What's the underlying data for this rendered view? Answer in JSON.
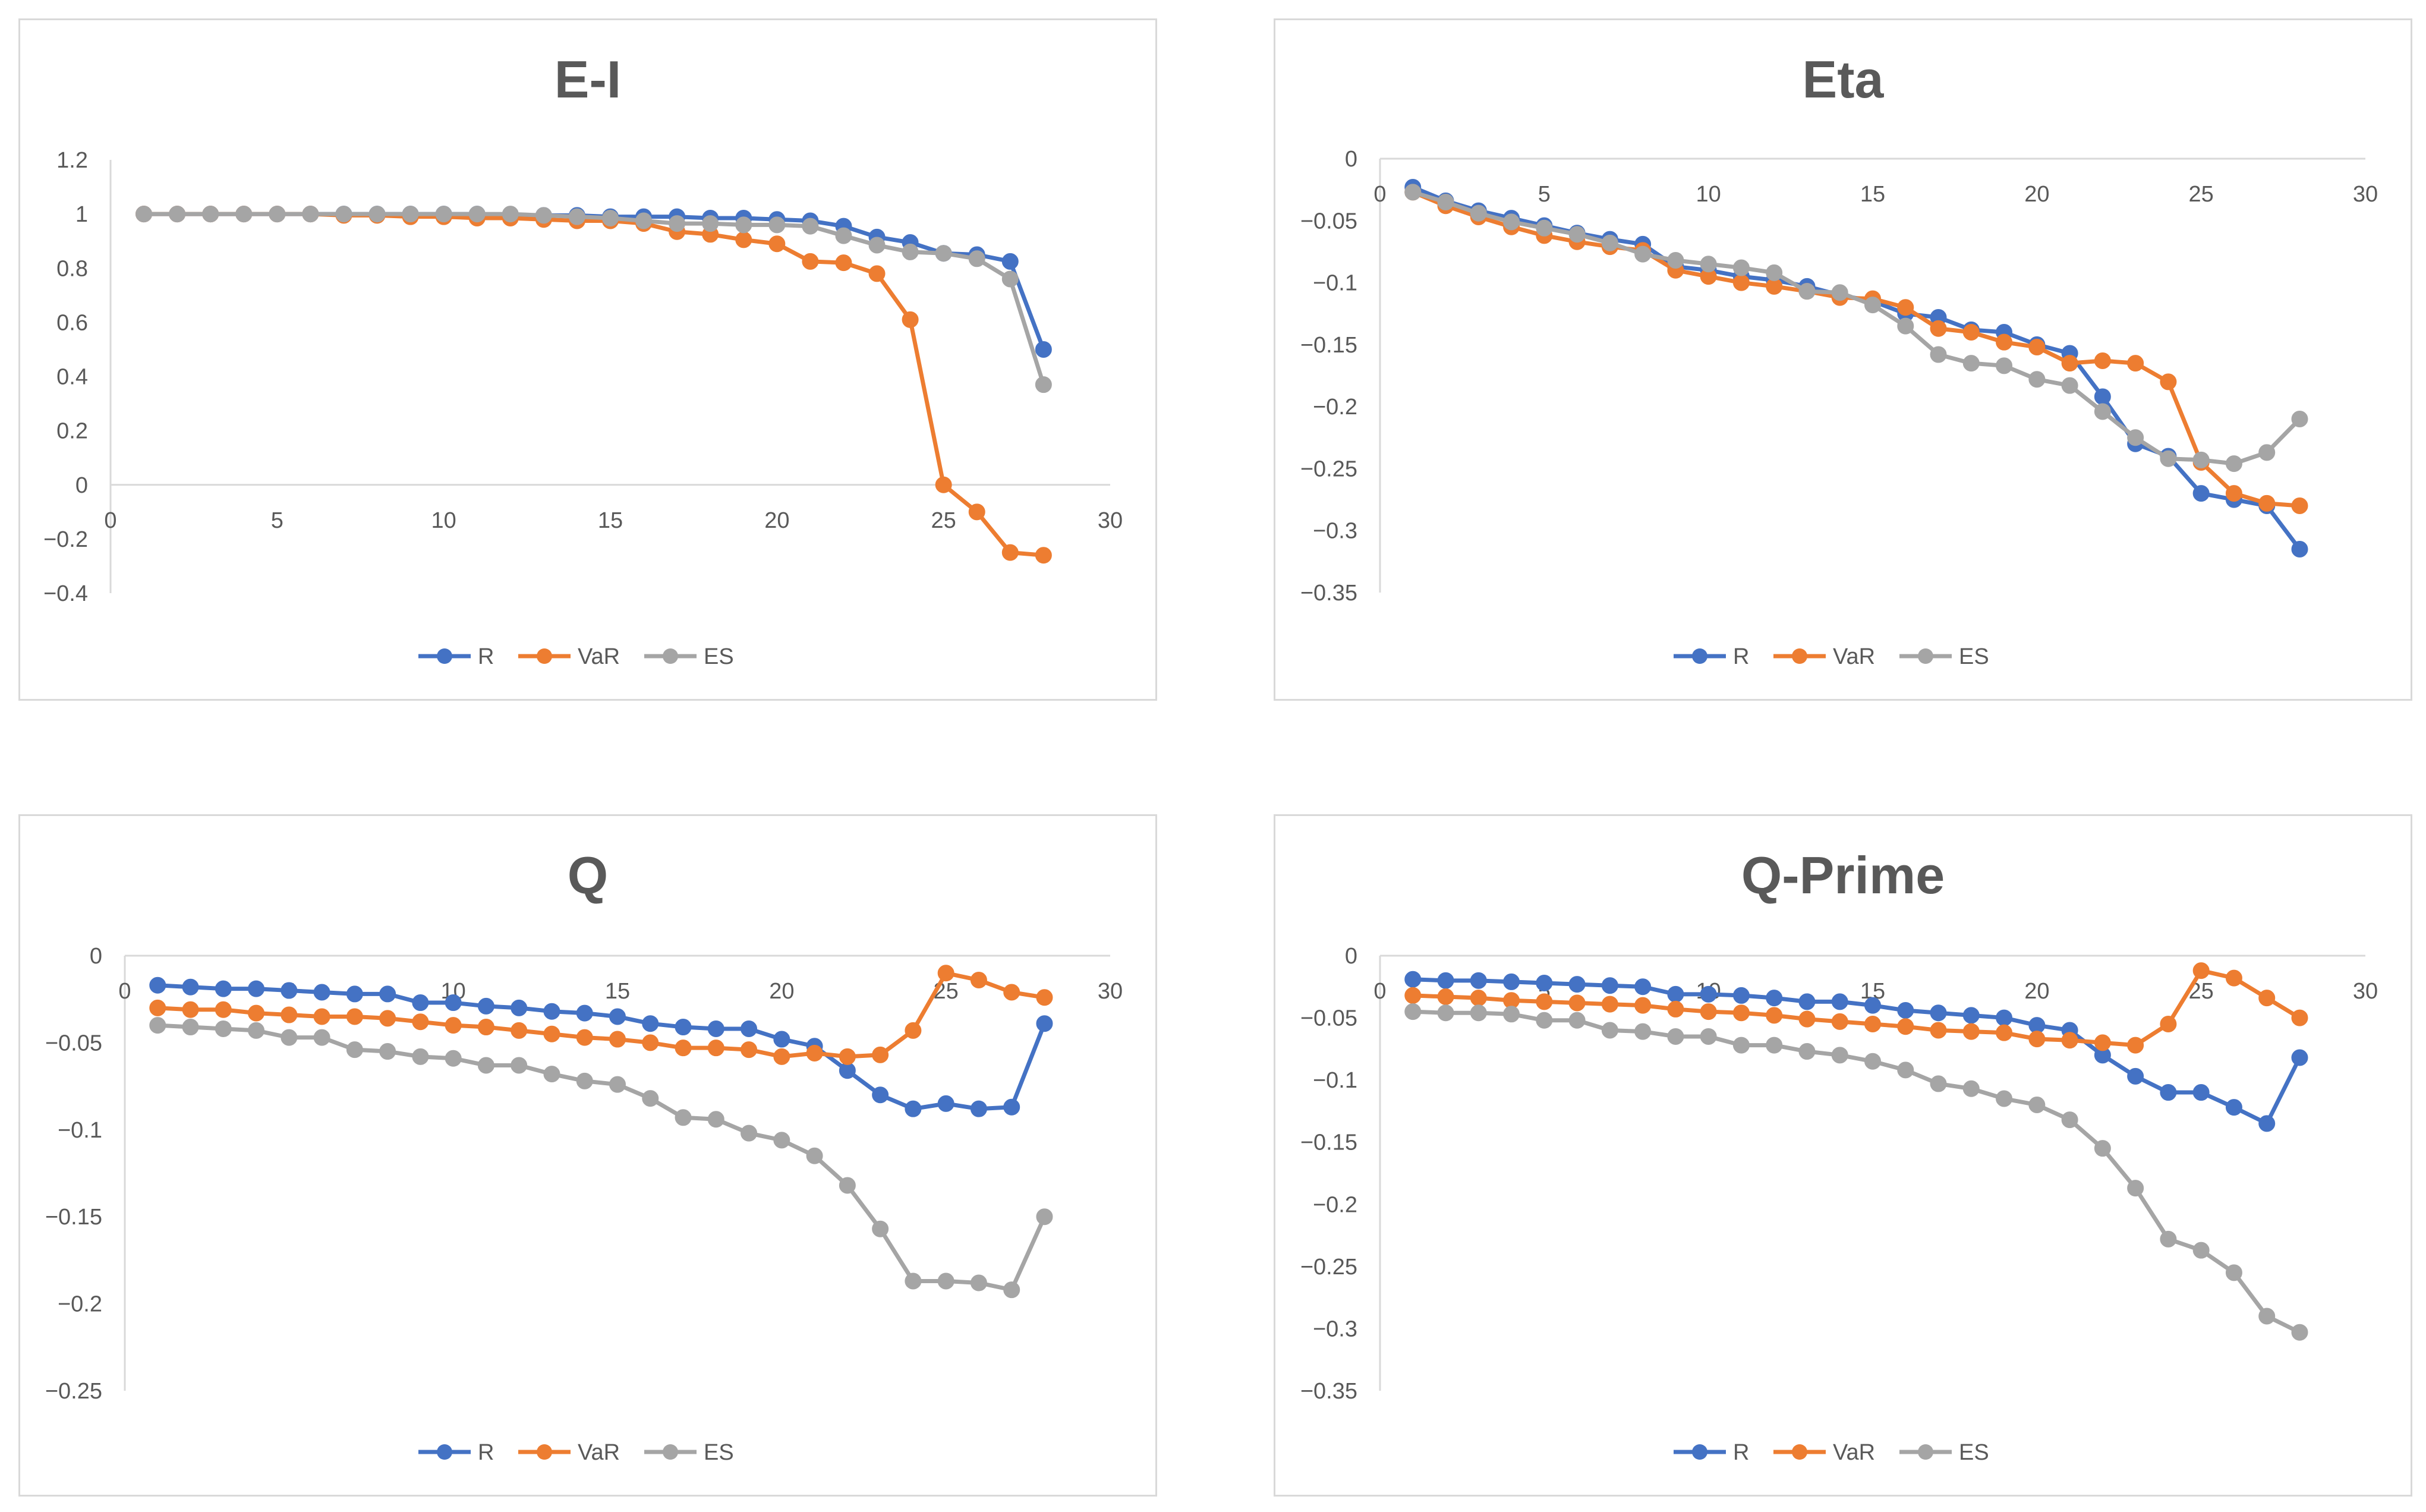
{
  "colors": {
    "R": "#4472c4",
    "VaR": "#ed7d31",
    "ES": "#a5a5a5",
    "axis": "#d9d9d9",
    "text": "#595959"
  },
  "chart_data": [
    {
      "type": "line",
      "title": "E-I",
      "xlabel": "",
      "ylabel": "",
      "xlim": [
        0,
        30
      ],
      "ylim": [
        -0.4,
        1.2
      ],
      "xticks": [
        0,
        5,
        10,
        15,
        20,
        25,
        30
      ],
      "xtick_labels": [
        "0",
        "5",
        "10",
        "15",
        "20",
        "25",
        "30"
      ],
      "yticks": [
        1.2,
        1,
        0.8,
        0.6,
        0.4,
        0.2,
        0,
        -0.2,
        -0.4
      ],
      "ytick_labels": [
        "1.2",
        "1",
        "0.8",
        "0.6",
        "0.4",
        "0.2",
        "0",
        "−0.2",
        "−0.4"
      ],
      "x": [
        1,
        2,
        3,
        4,
        5,
        6,
        7,
        8,
        9,
        10,
        11,
        12,
        13,
        14,
        15,
        16,
        17,
        18,
        19,
        20,
        21,
        22,
        23,
        24,
        25,
        26,
        27,
        28
      ],
      "series": [
        {
          "name": "R",
          "values": [
            1,
            1,
            1,
            1,
            1,
            1,
            1,
            1,
            1,
            1,
            1,
            0.995,
            0.995,
            0.995,
            0.99,
            0.99,
            0.99,
            0.985,
            0.985,
            0.98,
            0.975,
            0.955,
            0.915,
            0.895,
            0.855,
            0.85,
            0.825,
            0.5
          ]
        },
        {
          "name": "VaR",
          "values": [
            1,
            1,
            1,
            1,
            1,
            1,
            0.995,
            0.995,
            0.99,
            0.99,
            0.985,
            0.985,
            0.98,
            0.975,
            0.975,
            0.965,
            0.935,
            0.925,
            0.905,
            0.89,
            0.825,
            0.82,
            0.78,
            0.61,
            0,
            -0.1,
            -0.25,
            -0.26
          ]
        },
        {
          "name": "ES",
          "values": [
            1,
            1,
            1,
            1,
            1,
            1,
            1,
            1,
            1,
            1,
            1,
            1,
            0.995,
            0.99,
            0.985,
            0.975,
            0.965,
            0.965,
            0.96,
            0.96,
            0.955,
            0.92,
            0.885,
            0.86,
            0.855,
            0.835,
            0.76,
            0.37
          ]
        }
      ],
      "legend": [
        "R",
        "VaR",
        "ES"
      ]
    },
    {
      "type": "line",
      "title": "Eta",
      "xlabel": "",
      "ylabel": "",
      "xlim": [
        0,
        30
      ],
      "ylim": [
        -0.35,
        0
      ],
      "xticks": [
        0,
        5,
        10,
        15,
        20,
        25,
        30
      ],
      "xtick_labels": [
        "0",
        "5",
        "10",
        "15",
        "20",
        "25",
        "30"
      ],
      "yticks": [
        0,
        -0.05,
        -0.1,
        -0.15,
        -0.2,
        -0.25,
        -0.3,
        -0.35
      ],
      "ytick_labels": [
        "0",
        "−0.05",
        "−0.1",
        "−0.15",
        "−0.2",
        "−0.25",
        "−0.3",
        "−0.35"
      ],
      "x": [
        1,
        2,
        3,
        4,
        5,
        6,
        7,
        8,
        9,
        10,
        11,
        12,
        13,
        14,
        15,
        16,
        17,
        18,
        19,
        20,
        21,
        22,
        23,
        24,
        25,
        26,
        27,
        28
      ],
      "series": [
        {
          "name": "R",
          "values": [
            -0.023,
            -0.034,
            -0.042,
            -0.048,
            -0.054,
            -0.06,
            -0.065,
            -0.069,
            -0.087,
            -0.09,
            -0.095,
            -0.098,
            -0.103,
            -0.11,
            -0.115,
            -0.125,
            -0.128,
            -0.138,
            -0.14,
            -0.15,
            -0.157,
            -0.192,
            -0.23,
            -0.24,
            -0.27,
            -0.275,
            -0.28,
            -0.315
          ]
        },
        {
          "name": "VaR",
          "values": [
            -0.027,
            -0.038,
            -0.047,
            -0.055,
            -0.062,
            -0.067,
            -0.071,
            -0.074,
            -0.09,
            -0.095,
            -0.1,
            -0.103,
            -0.107,
            -0.112,
            -0.113,
            -0.12,
            -0.137,
            -0.14,
            -0.148,
            -0.152,
            -0.165,
            -0.163,
            -0.165,
            -0.18,
            -0.245,
            -0.27,
            -0.278,
            -0.28
          ]
        },
        {
          "name": "ES",
          "values": [
            -0.027,
            -0.035,
            -0.044,
            -0.051,
            -0.056,
            -0.061,
            -0.068,
            -0.077,
            -0.082,
            -0.085,
            -0.088,
            -0.092,
            -0.107,
            -0.108,
            -0.118,
            -0.135,
            -0.158,
            -0.165,
            -0.167,
            -0.178,
            -0.183,
            -0.204,
            -0.225,
            -0.242,
            -0.243,
            -0.246,
            -0.237,
            -0.21
          ]
        }
      ],
      "legend": [
        "R",
        "VaR",
        "ES"
      ]
    },
    {
      "type": "line",
      "title": "Q",
      "xlabel": "",
      "ylabel": "",
      "xlim": [
        0,
        30
      ],
      "ylim": [
        -0.25,
        0
      ],
      "xticks": [
        0,
        5,
        10,
        15,
        20,
        25,
        30
      ],
      "xtick_labels": [
        "0",
        "5",
        "10",
        "15",
        "20",
        "25",
        "30"
      ],
      "yticks": [
        0,
        -0.05,
        -0.1,
        -0.15,
        -0.2,
        -0.25
      ],
      "ytick_labels": [
        "0",
        "−0.05",
        "−0.1",
        "−0.15",
        "−0.2",
        "−0.25"
      ],
      "x": [
        1,
        2,
        3,
        4,
        5,
        6,
        7,
        8,
        9,
        10,
        11,
        12,
        13,
        14,
        15,
        16,
        17,
        18,
        19,
        20,
        21,
        22,
        23,
        24,
        25,
        26,
        27,
        28
      ],
      "series": [
        {
          "name": "R",
          "values": [
            -0.017,
            -0.018,
            -0.019,
            -0.019,
            -0.02,
            -0.021,
            -0.022,
            -0.022,
            -0.027,
            -0.027,
            -0.029,
            -0.03,
            -0.032,
            -0.033,
            -0.035,
            -0.039,
            -0.041,
            -0.042,
            -0.042,
            -0.048,
            -0.052,
            -0.066,
            -0.08,
            -0.088,
            -0.085,
            -0.088,
            -0.087,
            -0.039
          ]
        },
        {
          "name": "VaR",
          "values": [
            -0.03,
            -0.031,
            -0.031,
            -0.033,
            -0.034,
            -0.035,
            -0.035,
            -0.036,
            -0.038,
            -0.04,
            -0.041,
            -0.043,
            -0.045,
            -0.047,
            -0.048,
            -0.05,
            -0.053,
            -0.053,
            -0.054,
            -0.058,
            -0.056,
            -0.058,
            -0.057,
            -0.043,
            -0.01,
            -0.014,
            -0.021,
            -0.024
          ]
        },
        {
          "name": "ES",
          "values": [
            -0.04,
            -0.041,
            -0.042,
            -0.043,
            -0.047,
            -0.047,
            -0.054,
            -0.055,
            -0.058,
            -0.059,
            -0.063,
            -0.063,
            -0.068,
            -0.072,
            -0.074,
            -0.082,
            -0.093,
            -0.094,
            -0.102,
            -0.106,
            -0.115,
            -0.132,
            -0.157,
            -0.187,
            -0.187,
            -0.188,
            -0.192,
            -0.15
          ]
        }
      ],
      "legend": [
        "R",
        "VaR",
        "ES"
      ]
    },
    {
      "type": "line",
      "title": "Q-Prime",
      "xlabel": "",
      "ylabel": "",
      "xlim": [
        0,
        30
      ],
      "ylim": [
        -0.35,
        0
      ],
      "xticks": [
        0,
        5,
        10,
        15,
        20,
        25,
        30
      ],
      "xtick_labels": [
        "0",
        "5",
        "10",
        "15",
        "20",
        "25",
        "30"
      ],
      "yticks": [
        0,
        -0.05,
        -0.1,
        -0.15,
        -0.2,
        -0.25,
        -0.3,
        -0.35
      ],
      "ytick_labels": [
        "0",
        "−0.05",
        "−0.1",
        "−0.15",
        "−0.2",
        "−0.25",
        "−0.3",
        "−0.35"
      ],
      "x": [
        1,
        2,
        3,
        4,
        5,
        6,
        7,
        8,
        9,
        10,
        11,
        12,
        13,
        14,
        15,
        16,
        17,
        18,
        19,
        20,
        21,
        22,
        23,
        24,
        25,
        26,
        27,
        28
      ],
      "series": [
        {
          "name": "R",
          "values": [
            -0.019,
            -0.02,
            -0.02,
            -0.021,
            -0.022,
            -0.023,
            -0.024,
            -0.025,
            -0.031,
            -0.031,
            -0.032,
            -0.034,
            -0.037,
            -0.037,
            -0.04,
            -0.044,
            -0.046,
            -0.048,
            -0.05,
            -0.056,
            -0.06,
            -0.08,
            -0.097,
            -0.11,
            -0.11,
            -0.122,
            -0.135,
            -0.082
          ]
        },
        {
          "name": "VaR",
          "values": [
            -0.032,
            -0.033,
            -0.034,
            -0.036,
            -0.037,
            -0.038,
            -0.039,
            -0.04,
            -0.043,
            -0.045,
            -0.046,
            -0.048,
            -0.051,
            -0.053,
            -0.055,
            -0.057,
            -0.06,
            -0.061,
            -0.062,
            -0.067,
            -0.068,
            -0.07,
            -0.072,
            -0.055,
            -0.012,
            -0.018,
            -0.034,
            -0.05
          ]
        },
        {
          "name": "ES",
          "values": [
            -0.045,
            -0.046,
            -0.046,
            -0.047,
            -0.052,
            -0.052,
            -0.06,
            -0.061,
            -0.065,
            -0.065,
            -0.072,
            -0.072,
            -0.077,
            -0.08,
            -0.085,
            -0.092,
            -0.103,
            -0.107,
            -0.115,
            -0.12,
            -0.132,
            -0.155,
            -0.187,
            -0.228,
            -0.237,
            -0.255,
            -0.29,
            -0.303
          ]
        }
      ],
      "legend": [
        "R",
        "VaR",
        "ES"
      ]
    }
  ]
}
